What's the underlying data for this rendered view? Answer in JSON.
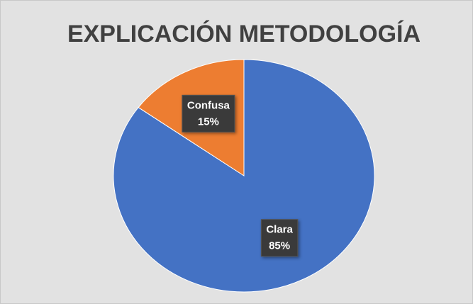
{
  "chart_data": {
    "type": "pie",
    "title": "EXPLICACIÓN METODOLOGÍA",
    "categories": [
      "Clara",
      "Confusa"
    ],
    "values": [
      85,
      15
    ],
    "value_labels": [
      "85%",
      "15%"
    ],
    "colors": [
      "#4472c4",
      "#ed7d31"
    ]
  }
}
